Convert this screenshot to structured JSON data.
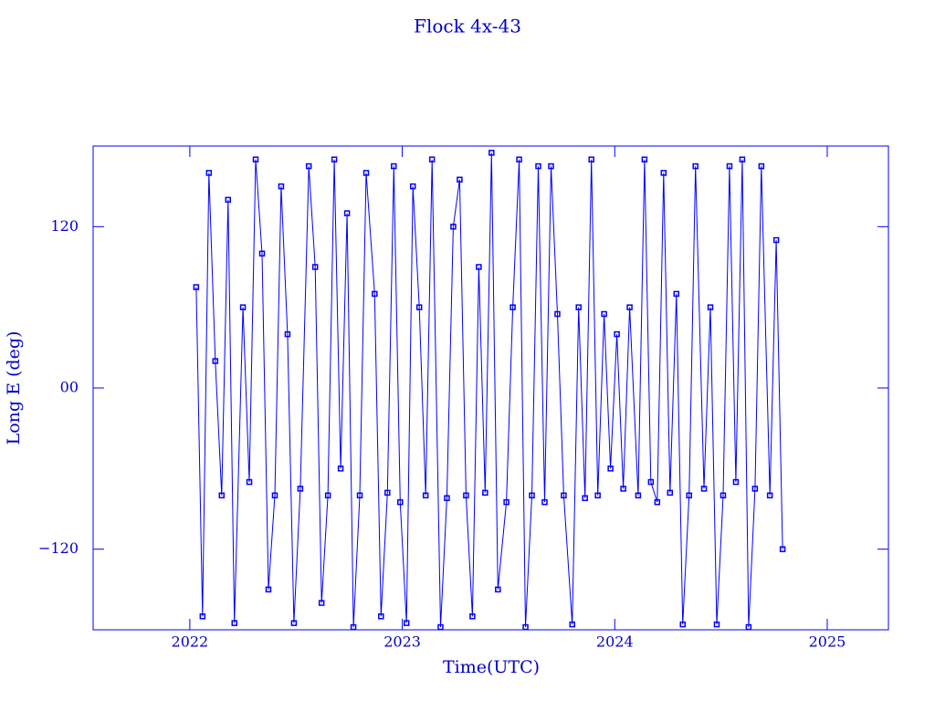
{
  "chart_data": {
    "type": "line",
    "title": "Flock 4x-43",
    "x_label": "Time(UTC)",
    "y_label": "Long E (deg)",
    "color": "#0000ff",
    "xlim": [
      2021.545,
      2025.288
    ],
    "xticks": [
      2022,
      2023,
      2024,
      2025
    ],
    "ylim": [
      -180,
      180
    ],
    "yticks": [
      120,
      {
        "value": 0,
        "label": "00"
      },
      {
        "value": -120,
        "label": "−120"
      }
    ],
    "x": [
      2022.03,
      2022.06,
      2022.09,
      2022.12,
      2022.15,
      2022.18,
      2022.21,
      2022.25,
      2022.28,
      2022.31,
      2022.34,
      2022.37,
      2022.4,
      2022.43,
      2022.46,
      2022.49,
      2022.52,
      2022.56,
      2022.59,
      2022.62,
      2022.65,
      2022.68,
      2022.71,
      2022.74,
      2022.77,
      2022.8,
      2022.83,
      2022.87,
      2022.9,
      2022.93,
      2022.96,
      2022.99,
      2023.02,
      2023.05,
      2023.08,
      2023.11,
      2023.14,
      2023.18,
      2023.21,
      2023.24,
      2023.27,
      2023.3,
      2023.33,
      2023.36,
      2023.39,
      2023.42,
      2023.45,
      2023.49,
      2023.52,
      2023.55,
      2023.58,
      2023.61,
      2023.64,
      2023.67,
      2023.7,
      2023.73,
      2023.76,
      2023.8,
      2023.83,
      2023.86,
      2023.89,
      2023.92,
      2023.95,
      2023.98,
      2024.01,
      2024.04,
      2024.07,
      2024.11,
      2024.14,
      2024.17,
      2024.2,
      2024.23,
      2024.26,
      2024.29,
      2024.32,
      2024.35,
      2024.38,
      2024.42,
      2024.45,
      2024.48,
      2024.51,
      2024.54,
      2024.57,
      2024.6,
      2024.63,
      2024.66,
      2024.69,
      2024.73,
      2024.76,
      2024.79
    ],
    "values": [
      75,
      -170,
      160,
      20,
      -80,
      140,
      -175,
      60,
      -70,
      170,
      100,
      -150,
      -80,
      150,
      40,
      -175,
      -75,
      165,
      90,
      -160,
      -80,
      170,
      -60,
      130,
      -178,
      -80,
      160,
      70,
      -170,
      -78,
      165,
      -85,
      -175,
      150,
      60,
      -80,
      170,
      -178,
      -82,
      120,
      155,
      -80,
      -170,
      90,
      -78,
      175,
      -150,
      -85,
      60,
      170,
      -178,
      -80,
      165,
      -85,
      165,
      55,
      -80,
      -176,
      60,
      -82,
      170,
      -80,
      55,
      -60,
      40,
      -75,
      60,
      -80,
      170,
      -70,
      -85,
      160,
      -78,
      70,
      -176,
      -80,
      165,
      -75,
      60,
      -176,
      -80,
      165,
      -70,
      170,
      -178,
      -75,
      165,
      -80,
      110,
      -120
    ]
  }
}
